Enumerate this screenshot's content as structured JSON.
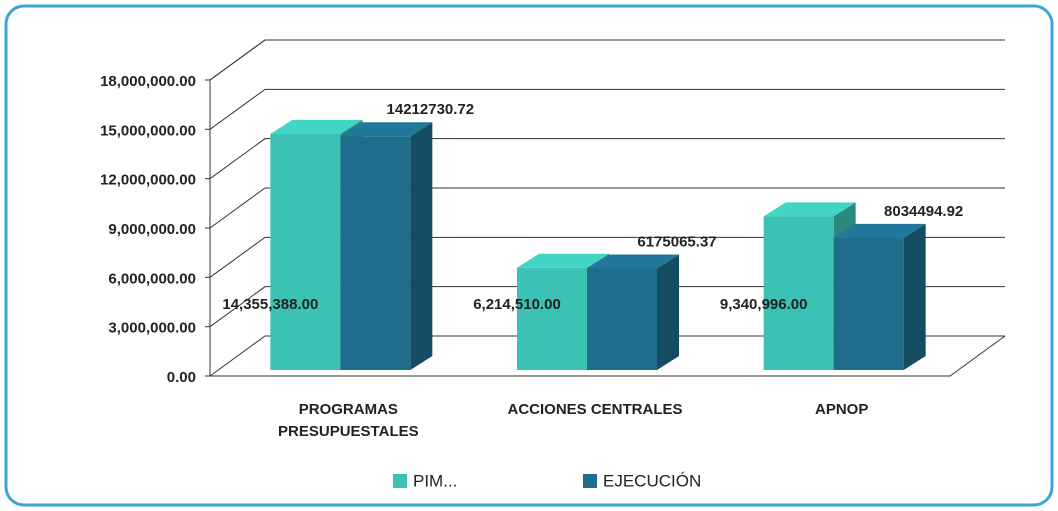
{
  "chart_data": {
    "type": "bar3d",
    "categories": [
      "PROGRAMAS PRESUPUESTALES",
      "ACCIONES CENTRALES",
      "APNOP"
    ],
    "series": [
      {
        "name": "PIM...",
        "color": "#3cc2b4",
        "values": [
          14355388,
          6214510,
          9340996
        ],
        "value_labels": [
          "14,355,388.00",
          "6,214,510.00",
          "9,340,996.00"
        ]
      },
      {
        "name": "EJECUCIÓN",
        "color": "#1f6d8c",
        "values": [
          14212730.72,
          6175065.37,
          8034494.92
        ]
      }
    ],
    "ylim": [
      0,
      18000000
    ],
    "yticks": [
      {
        "value": 0,
        "label": "0.00"
      },
      {
        "value": 3000000,
        "label": "3,000,000.00"
      },
      {
        "value": 6000000,
        "label": "6,000,000.00"
      },
      {
        "value": 9000000,
        "label": "9,000,000.00"
      },
      {
        "value": 12000000,
        "label": "12,000,000.00"
      },
      {
        "value": 15000000,
        "label": "15,000,000.00"
      },
      {
        "value": 18000000,
        "label": "18,000,000.00"
      }
    ],
    "grid": true,
    "legend": "bottom"
  }
}
